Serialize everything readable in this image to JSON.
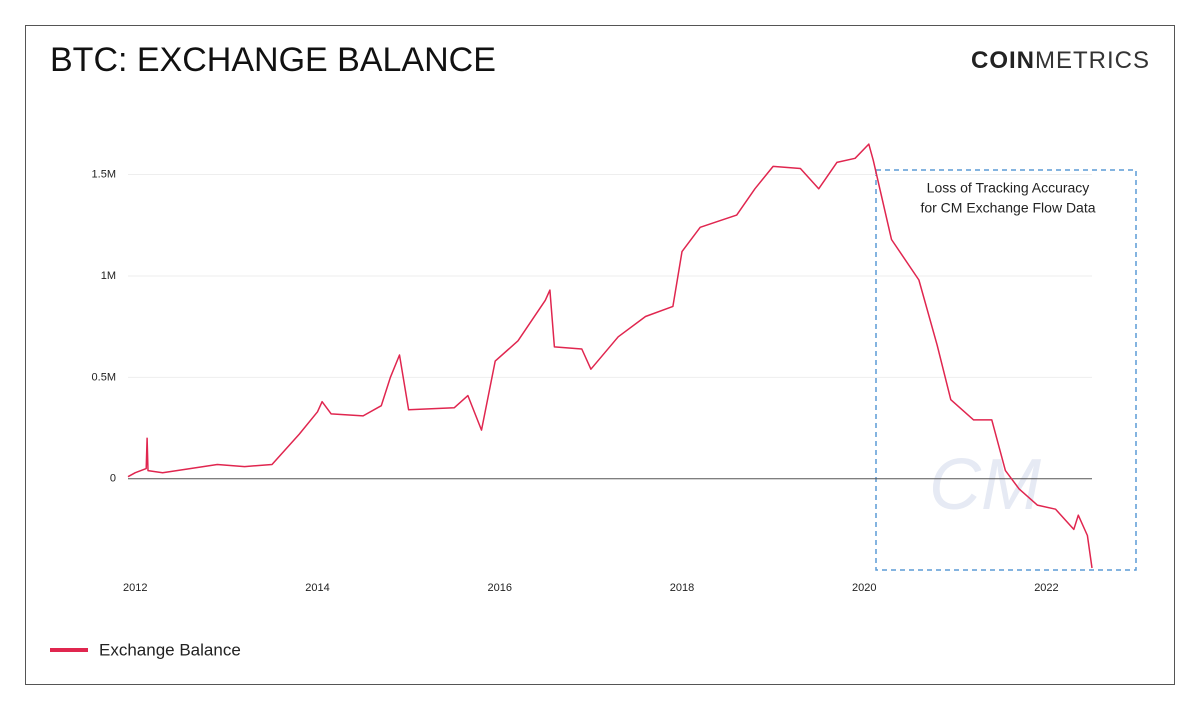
{
  "chart_data": {
    "type": "line",
    "title": "BTC: EXCHANGE BALANCE",
    "logo": {
      "bold": "COIN",
      "light": "METRICS"
    },
    "watermark": "CM",
    "annotation": [
      "Loss of Tracking Accuracy",
      "for CM Exchange Flow Data"
    ],
    "x": [
      2011.92,
      2012.0,
      2012.12,
      2012.13,
      2012.14,
      2012.3,
      2012.6,
      2012.9,
      2013.2,
      2013.5,
      2013.8,
      2014.0,
      2014.05,
      2014.15,
      2014.5,
      2014.7,
      2014.8,
      2014.9,
      2015.0,
      2015.5,
      2015.65,
      2015.8,
      2015.95,
      2016.2,
      2016.5,
      2016.55,
      2016.6,
      2016.9,
      2017.0,
      2017.3,
      2017.6,
      2017.9,
      2018.0,
      2018.2,
      2018.4,
      2018.6,
      2018.8,
      2019.0,
      2019.3,
      2019.5,
      2019.7,
      2019.9,
      2020.05,
      2020.1,
      2020.3,
      2020.6,
      2020.8,
      2020.95,
      2021.2,
      2021.4,
      2021.55,
      2021.7,
      2021.9,
      2022.1,
      2022.3,
      2022.35,
      2022.45,
      2022.5
    ],
    "series": [
      {
        "name": "Exchange Balance",
        "color": "#e0264f",
        "values": [
          10000,
          30000,
          50000,
          200000,
          40000,
          30000,
          50000,
          70000,
          60000,
          70000,
          220000,
          330000,
          380000,
          320000,
          310000,
          360000,
          500000,
          610000,
          340000,
          350000,
          410000,
          240000,
          580000,
          680000,
          880000,
          930000,
          650000,
          640000,
          540000,
          700000,
          800000,
          850000,
          1120000,
          1240000,
          1270000,
          1300000,
          1430000,
          1540000,
          1530000,
          1430000,
          1560000,
          1580000,
          1650000,
          1570000,
          1180000,
          980000,
          660000,
          390000,
          290000,
          290000,
          40000,
          -50000,
          -130000,
          -150000,
          -250000,
          -180000,
          -280000,
          -440000
        ]
      }
    ],
    "xlim": [
      2011.92,
      2022.5
    ],
    "xticks": [
      2012,
      2014,
      2016,
      2018,
      2020,
      2022
    ],
    "ylim": [
      -450000,
      1700000
    ],
    "yticks": [
      0,
      {
        "value": 500000,
        "label": "0.5M"
      },
      {
        "value": 1000000,
        "label": "1M"
      },
      {
        "value": 1500000,
        "label": "1.5M"
      }
    ],
    "grid": true
  }
}
